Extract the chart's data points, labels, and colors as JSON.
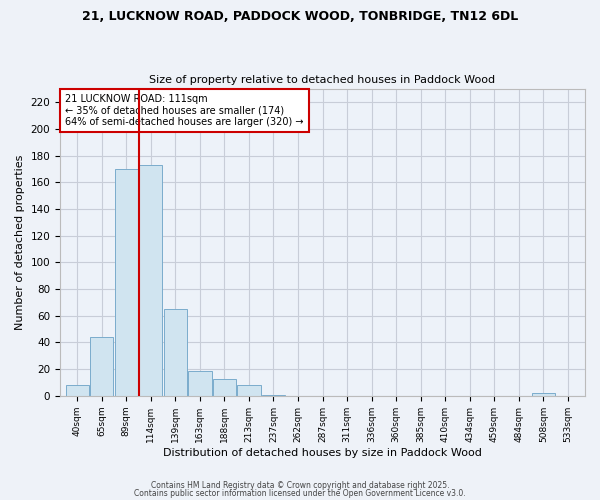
{
  "title": "21, LUCKNOW ROAD, PADDOCK WOOD, TONBRIDGE, TN12 6DL",
  "subtitle": "Size of property relative to detached houses in Paddock Wood",
  "xlabel": "Distribution of detached houses by size in Paddock Wood",
  "ylabel": "Number of detached properties",
  "bar_color": "#d0e4f0",
  "bar_edge_color": "#7aaccc",
  "background_color": "#eef2f8",
  "plot_bg_color": "#edf2f9",
  "grid_color": "#c8cdd8",
  "categories": [
    "40sqm",
    "65sqm",
    "89sqm",
    "114sqm",
    "139sqm",
    "163sqm",
    "188sqm",
    "213sqm",
    "237sqm",
    "262sqm",
    "287sqm",
    "311sqm",
    "336sqm",
    "360sqm",
    "385sqm",
    "410sqm",
    "434sqm",
    "459sqm",
    "484sqm",
    "508sqm",
    "533sqm"
  ],
  "values": [
    8,
    44,
    170,
    173,
    65,
    19,
    13,
    8,
    1,
    0,
    0,
    0,
    0,
    0,
    0,
    0,
    0,
    0,
    0,
    2,
    0
  ],
  "ylim": [
    0,
    230
  ],
  "yticks": [
    0,
    20,
    40,
    60,
    80,
    100,
    120,
    140,
    160,
    180,
    200,
    220
  ],
  "vline_color": "#cc0000",
  "annotation_title": "21 LUCKNOW ROAD: 111sqm",
  "annotation_line1": "← 35% of detached houses are smaller (174)",
  "annotation_line2": "64% of semi-detached houses are larger (320) →",
  "annotation_box_color": "#ffffff",
  "annotation_border_color": "#cc0000",
  "footer1": "Contains HM Land Registry data © Crown copyright and database right 2025.",
  "footer2": "Contains public sector information licensed under the Open Government Licence v3.0."
}
